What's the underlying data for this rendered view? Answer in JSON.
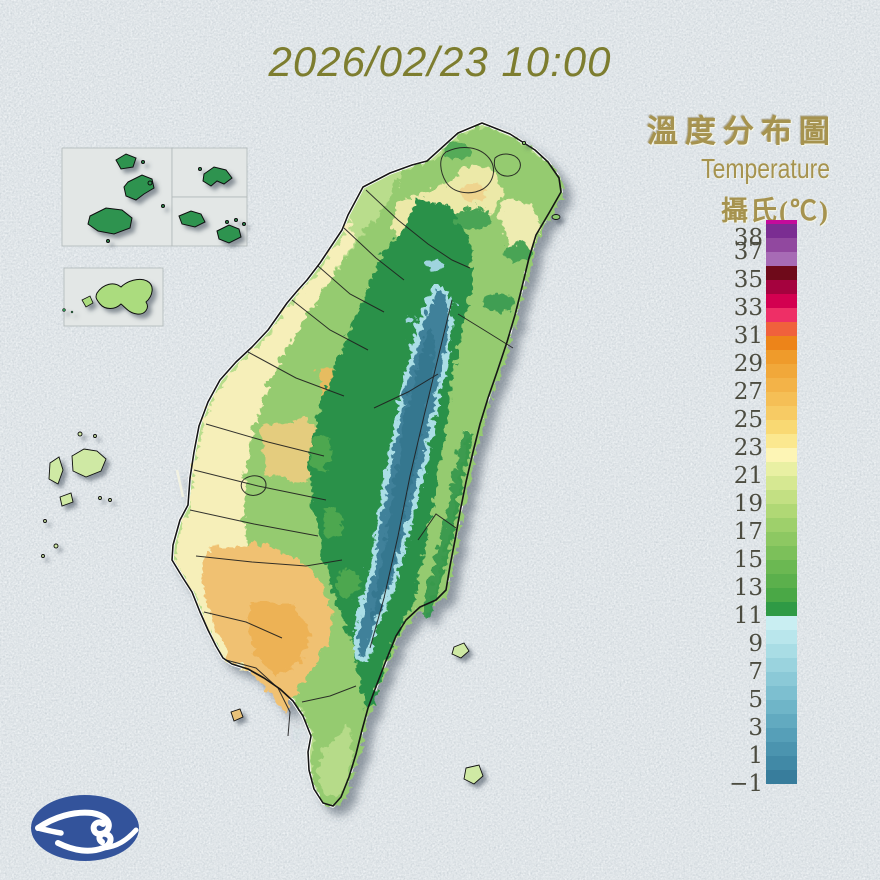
{
  "datetime_title": "2026/02/23 10:00",
  "legend": {
    "title_zh": "溫度分布圖",
    "title_en": "Temperature",
    "unit_label": "攝氏(℃)"
  },
  "colorbar": {
    "unit": "°C",
    "ticks": [
      {
        "value": 38,
        "label": "38"
      },
      {
        "value": 37,
        "label": "37"
      },
      {
        "value": 35,
        "label": "35"
      },
      {
        "value": 33,
        "label": "33"
      },
      {
        "value": 31,
        "label": "31"
      },
      {
        "value": 29,
        "label": "29"
      },
      {
        "value": 27,
        "label": "27"
      },
      {
        "value": 25,
        "label": "25"
      },
      {
        "value": 23,
        "label": "23"
      },
      {
        "value": 21,
        "label": "21"
      },
      {
        "value": 19,
        "label": "19"
      },
      {
        "value": 17,
        "label": "17"
      },
      {
        "value": 15,
        "label": "15"
      },
      {
        "value": 13,
        "label": "13"
      },
      {
        "value": 11,
        "label": "11"
      },
      {
        "value": 9,
        "label": "9"
      },
      {
        "value": 7,
        "label": "7"
      },
      {
        "value": 5,
        "label": "5"
      },
      {
        "value": 3,
        "label": "3"
      },
      {
        "value": 1,
        "label": "1"
      },
      {
        "value": -1,
        "label": "−1"
      }
    ],
    "cells": [
      {
        "range": [
          39,
          40
        ],
        "color": "#c40b9b"
      },
      {
        "range": [
          38,
          39
        ],
        "color": "#7b2d92"
      },
      {
        "range": [
          37,
          38
        ],
        "color": "#91489f"
      },
      {
        "range": [
          36,
          37
        ],
        "color": "#a76bb5"
      },
      {
        "range": [
          35,
          36
        ],
        "color": "#6f0a1a"
      },
      {
        "range": [
          34,
          35
        ],
        "color": "#a5023e"
      },
      {
        "range": [
          33,
          34
        ],
        "color": "#d30050"
      },
      {
        "range": [
          32,
          33
        ],
        "color": "#ee2f66"
      },
      {
        "range": [
          31,
          32
        ],
        "color": "#f0613c"
      },
      {
        "range": [
          30,
          31
        ],
        "color": "#ed8419"
      },
      {
        "range": [
          29,
          30
        ],
        "color": "#ef9b2b"
      },
      {
        "range": [
          28,
          29
        ],
        "color": "#f1a83a"
      },
      {
        "range": [
          27,
          28
        ],
        "color": "#f3b348"
      },
      {
        "range": [
          26,
          27
        ],
        "color": "#f5bf56"
      },
      {
        "range": [
          25,
          26
        ],
        "color": "#f7cb64"
      },
      {
        "range": [
          24,
          25
        ],
        "color": "#f9d973"
      },
      {
        "range": [
          23,
          24
        ],
        "color": "#fbe88f"
      },
      {
        "range": [
          22,
          23
        ],
        "color": "#fdf5b5"
      },
      {
        "range": [
          21,
          22
        ],
        "color": "#e9f0a3"
      },
      {
        "range": [
          20,
          21
        ],
        "color": "#d6e892"
      },
      {
        "range": [
          19,
          20
        ],
        "color": "#c3e083"
      },
      {
        "range": [
          18,
          19
        ],
        "color": "#b0d875"
      },
      {
        "range": [
          17,
          18
        ],
        "color": "#9ed06b"
      },
      {
        "range": [
          16,
          17
        ],
        "color": "#8dc862"
      },
      {
        "range": [
          15,
          16
        ],
        "color": "#7cc05a"
      },
      {
        "range": [
          14,
          15
        ],
        "color": "#6bb852"
      },
      {
        "range": [
          13,
          14
        ],
        "color": "#5bb04c"
      },
      {
        "range": [
          12,
          13
        ],
        "color": "#4aa846"
      },
      {
        "range": [
          11,
          12
        ],
        "color": "#2f9a45"
      },
      {
        "range": [
          10,
          11
        ],
        "color": "#c9eef2"
      },
      {
        "range": [
          9,
          10
        ],
        "color": "#b9e6ec"
      },
      {
        "range": [
          8,
          9
        ],
        "color": "#a9dde5"
      },
      {
        "range": [
          7,
          8
        ],
        "color": "#9ad3de"
      },
      {
        "range": [
          6,
          7
        ],
        "color": "#8bc9d7"
      },
      {
        "range": [
          5,
          6
        ],
        "color": "#7dbfd0"
      },
      {
        "range": [
          4,
          5
        ],
        "color": "#6fb5c8"
      },
      {
        "range": [
          3,
          4
        ],
        "color": "#62aac0"
      },
      {
        "range": [
          2,
          3
        ],
        "color": "#569fb8"
      },
      {
        "range": [
          1,
          2
        ],
        "color": "#4b94af"
      },
      {
        "range": [
          0,
          1
        ],
        "color": "#4189a6"
      },
      {
        "range": [
          -1,
          0
        ],
        "color": "#387d9c"
      }
    ]
  },
  "palette": {
    "background": "#ccd4d9",
    "title_text": "#7d7d2f",
    "legend_text": "#a6934f",
    "tick_text": "#4c4c40",
    "logo_blue": "#33539b",
    "plain_cream": "#f6efb9",
    "plain_orange": "#f0c172",
    "hills_green": "#95cb70",
    "mountain_green": "#2a9148",
    "ridge_teal": "#3f819a",
    "ridge_cyan_fringe": "#aadee6"
  }
}
